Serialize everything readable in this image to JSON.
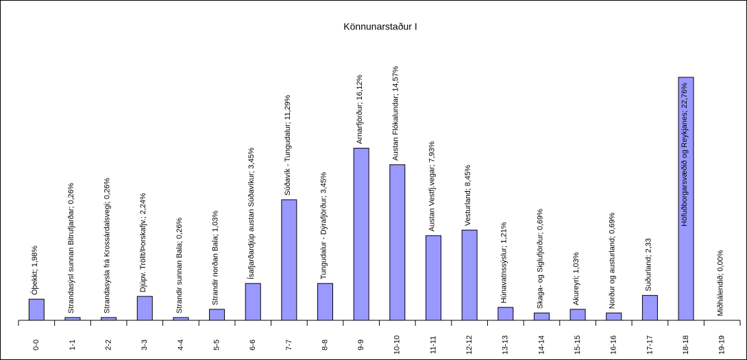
{
  "chart_data": {
    "type": "bar",
    "title": "Könnunarstaður I",
    "categories": [
      "0-0",
      "1-1",
      "2-2",
      "3-3",
      "4-4",
      "5-5",
      "6-6",
      "7-7",
      "8-8",
      "9-9",
      "10-10",
      "11-11",
      "12-12",
      "13-13",
      "14-14",
      "15-15",
      "16-16",
      "17-17",
      "18-18",
      "19-19"
    ],
    "values": [
      1.98,
      0.26,
      0.26,
      2.24,
      0.26,
      1.03,
      3.45,
      11.29,
      3.45,
      16.12,
      14.57,
      7.93,
      8.45,
      1.21,
      0.69,
      1.03,
      0.69,
      2.33,
      22.76,
      0.0
    ],
    "value_labels": [
      "Óþekkt; 1,98%",
      "Strandasýsl sunnan Bitrufjarðar; 0,26%",
      "Strandasysla frá Krossárdalsvegi; 0,26%",
      "Djúpv. Tröllt/Þorskafjv.; 2,24%",
      "Strandir sunnan Bala; 0,26%",
      "Strandir norðan Bala; 1,03%",
      "Ísafjarðardjúp austan Súðavíkur; 3,45%",
      "Súðavík - Tungudalur; 11,29%",
      "Tungudalur - Dýrafjörður; 3,45%",
      "Arnarfjörður; 16,12%",
      "Austan Flókalundar; 14,57%",
      "Austan Vestfj.vegar; 7,93%",
      "Vesturland; 8,45%",
      "Húnavatnssýslur; 1,21%",
      "Skaga- og Siglufjörður; 0,69%",
      "Akureyri; 1,03%",
      "Norður og austurland; 0,69%",
      "Suðurland; 2,33",
      "Höfuðborgarsvæðið og Reykjanes; 22,76%",
      "Miðhálendið; 0,00%"
    ],
    "color": "#9999ff",
    "ylim": [
      0,
      24
    ]
  }
}
